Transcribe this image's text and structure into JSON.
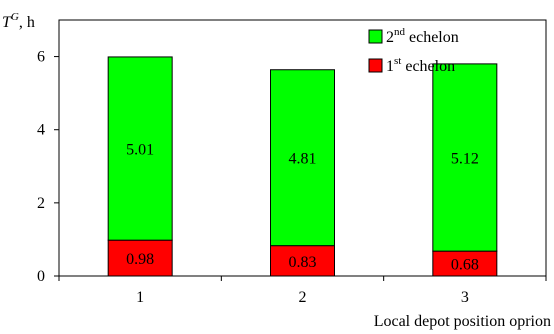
{
  "chart_data": {
    "type": "bar",
    "stacked": true,
    "categories": [
      "1",
      "2",
      "3"
    ],
    "series": [
      {
        "name": "1st echelon",
        "legend_base": "1",
        "legend_sup": "st",
        "legend_rest": " echelon",
        "color": "#ff0000",
        "values": [
          0.98,
          0.83,
          0.68
        ]
      },
      {
        "name": "2nd echelon",
        "legend_base": "2",
        "legend_sup": "nd",
        "legend_rest": " echelon",
        "color": "#00ff00",
        "values": [
          5.01,
          4.81,
          5.12
        ]
      }
    ],
    "data_labels": [
      [
        "0.98",
        "0.83",
        "0.68"
      ],
      [
        "5.01",
        "4.81",
        "5.12"
      ]
    ],
    "ylabel_main": "T",
    "ylabel_sup": "G",
    "ylabel_unit": ", h",
    "xlabel": "Local depot position oprion",
    "ylim": [
      0,
      7
    ],
    "yticks": [
      "0",
      "2",
      "4",
      "6"
    ],
    "ytick_values": [
      0,
      2,
      4,
      6
    ],
    "legend_position": "top-right",
    "grid": false
  }
}
